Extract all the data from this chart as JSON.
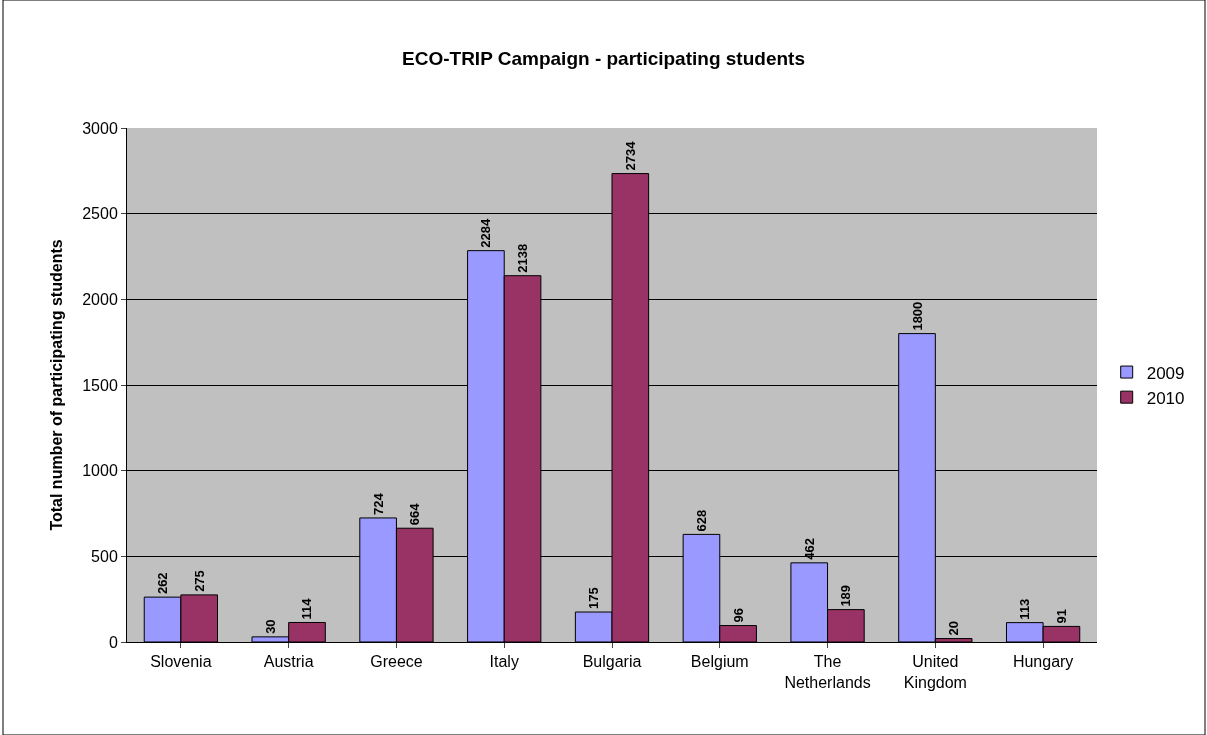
{
  "chart_data": {
    "type": "bar",
    "title": "ECO-TRIP Campaign - participating students",
    "ylabel": "Total number of participating students",
    "categories": [
      "Slovenia",
      "Austria",
      "Greece",
      "Italy",
      "Bulgaria",
      "Belgium",
      "The Netherlands",
      "United Kingdom",
      "Hungary"
    ],
    "series": [
      {
        "name": "2009",
        "color": "#9999ff",
        "values": [
          262,
          30,
          724,
          2284,
          175,
          628,
          462,
          1800,
          113
        ]
      },
      {
        "name": "2010",
        "color": "#993366",
        "values": [
          275,
          114,
          664,
          2138,
          2734,
          96,
          189,
          20,
          91
        ]
      }
    ],
    "ylim": [
      0,
      3000
    ],
    "yticks": [
      0,
      500,
      1000,
      1500,
      2000,
      2500,
      3000
    ],
    "grid": "y",
    "legend": "right",
    "data_labels": true
  }
}
